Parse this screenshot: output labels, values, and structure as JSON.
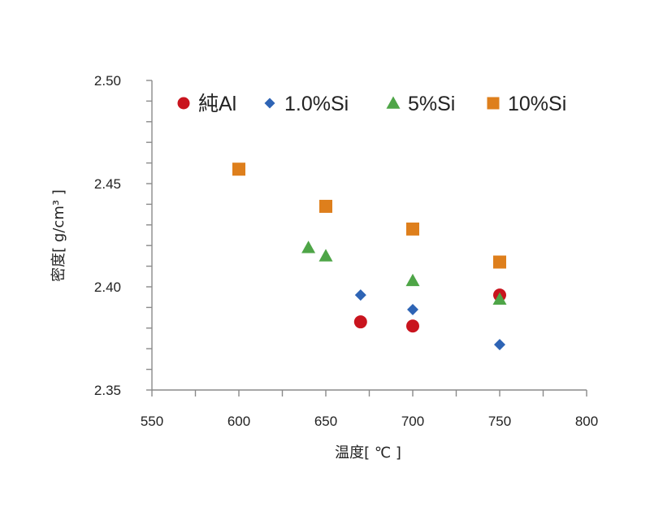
{
  "chart_data": {
    "type": "scatter",
    "xlabel": "温度[ ℃ ]",
    "ylabel": "密度[ g/cm³ ]",
    "xlim": [
      550,
      800
    ],
    "ylim": [
      2.35,
      2.5
    ],
    "x_ticks": [
      "550",
      "600",
      "650",
      "700",
      "750",
      "800"
    ],
    "y_ticks": [
      "2.35",
      "2.40",
      "2.45",
      "2.50"
    ],
    "grid": false,
    "legend_position": "top",
    "series": [
      {
        "name": "純Al",
        "marker": "circle",
        "color": "#C9141E",
        "points": [
          [
            670,
            2.383
          ],
          [
            700,
            2.381
          ],
          [
            750,
            2.396
          ]
        ]
      },
      {
        "name": "1.0%Si",
        "marker": "diamond",
        "color": "#2E64B5",
        "points": [
          [
            670,
            2.396
          ],
          [
            700,
            2.389
          ],
          [
            750,
            2.372
          ]
        ]
      },
      {
        "name": "5%Si",
        "marker": "triangle",
        "color": "#4EA547",
        "points": [
          [
            640,
            2.419
          ],
          [
            650,
            2.415
          ],
          [
            700,
            2.403
          ],
          [
            750,
            2.394
          ]
        ]
      },
      {
        "name": "10%Si",
        "marker": "square",
        "color": "#DE7F1C",
        "points": [
          [
            600,
            2.457
          ],
          [
            650,
            2.439
          ],
          [
            700,
            2.428
          ],
          [
            750,
            2.412
          ]
        ]
      }
    ]
  }
}
